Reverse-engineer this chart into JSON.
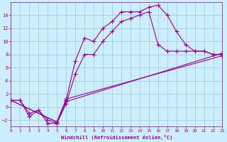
{
  "xlabel": "Windchill (Refroidissement éolien,°C)",
  "background_color": "#cceeff",
  "line_color": "#990099",
  "grid_color": "#99cccc",
  "xlim": [
    0,
    23
  ],
  "ylim": [
    -3,
    16
  ],
  "xticks": [
    0,
    1,
    2,
    3,
    4,
    5,
    6,
    7,
    8,
    9,
    10,
    11,
    12,
    13,
    14,
    15,
    16,
    17,
    18,
    19,
    20,
    21,
    22,
    23
  ],
  "yticks": [
    -2,
    0,
    2,
    4,
    6,
    8,
    10,
    12,
    14
  ],
  "line1_x": [
    0,
    1,
    2,
    3,
    4,
    5,
    6,
    7,
    8,
    9,
    10,
    11,
    12,
    13,
    14,
    15,
    16,
    17,
    18,
    19,
    20,
    21,
    22,
    23
  ],
  "line1_y": [
    1,
    1,
    -1.5,
    -0.5,
    -2.5,
    -2.5,
    1,
    7,
    10.5,
    10,
    12,
    13,
    14.5,
    14.5,
    14.5,
    15.2,
    15.5,
    14,
    11.5,
    9.5,
    8.5,
    8.5,
    8,
    8
  ],
  "line2_x": [
    0,
    1,
    2,
    3,
    4,
    5,
    6,
    7,
    8,
    9,
    10,
    11,
    12,
    13,
    14,
    15,
    16,
    17,
    18,
    19,
    20,
    21,
    22,
    23
  ],
  "line2_y": [
    1,
    1,
    -1,
    -0.5,
    -2,
    -2.5,
    0.5,
    5,
    8,
    8,
    10,
    11.5,
    13,
    13.5,
    14,
    14.5,
    9.5,
    8.5,
    8.5,
    8.5,
    8.5,
    8.5,
    8,
    8
  ],
  "line3_x": [
    0,
    5,
    6,
    23
  ],
  "line3_y": [
    1,
    -2.3,
    0.8,
    8.2
  ],
  "line4_x": [
    0,
    5,
    6,
    23
  ],
  "line4_y": [
    1,
    -2.3,
    1.2,
    7.8
  ]
}
